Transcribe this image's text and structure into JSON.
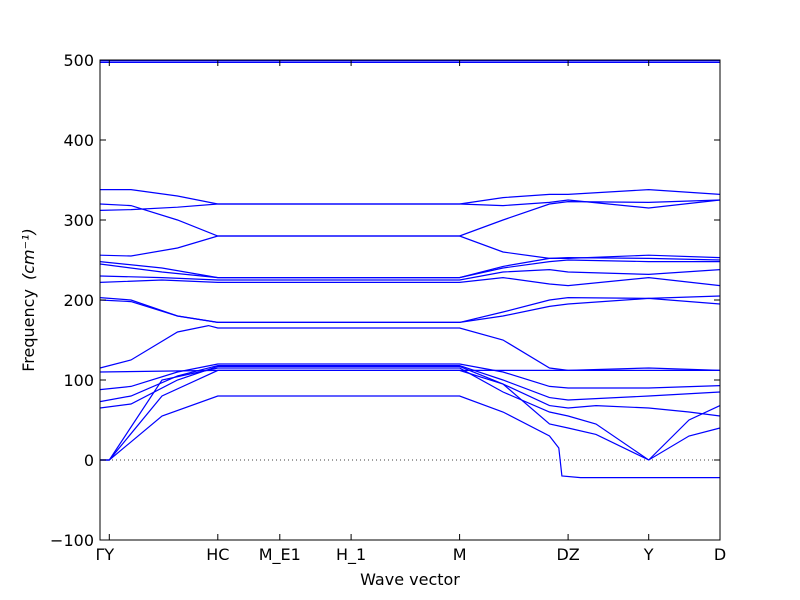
{
  "chart_data": {
    "type": "line",
    "title": "",
    "xlabel": "Wave vector",
    "ylabel": "Frequency",
    "ylabel_unit": "(cm⁻¹)",
    "ylim": [
      -100,
      500
    ],
    "yticks": [
      -100,
      0,
      100,
      200,
      300,
      400,
      500
    ],
    "ytick_labels": [
      "−100",
      "0",
      "100",
      "200",
      "300",
      "400",
      "500"
    ],
    "x_points": [
      {
        "label": "Γ",
        "x": 0.0
      },
      {
        "label": "Y",
        "x": 0.03
      },
      {
        "label": "HC",
        "x": 0.38
      },
      {
        "label": "M_E1",
        "x": 0.58
      },
      {
        "label": "H_1",
        "x": 0.81
      },
      {
        "label": "M",
        "x": 1.16
      },
      {
        "label": "DZ",
        "x": 1.51
      },
      {
        "label": "Y",
        "x": 1.77
      },
      {
        "label": "D",
        "x": 2.0
      }
    ],
    "xlim": [
      0,
      2.0
    ],
    "zero_line": true,
    "series_color": "#0000ff",
    "series": [
      {
        "points": [
          [
            0,
            0
          ],
          [
            0.03,
            0
          ],
          [
            0.2,
            55
          ],
          [
            0.38,
            80
          ],
          [
            1.16,
            80
          ],
          [
            1.3,
            60
          ],
          [
            1.45,
            30
          ],
          [
            1.48,
            15
          ],
          [
            1.49,
            -20
          ],
          [
            1.55,
            -22
          ],
          [
            2.0,
            -22
          ]
        ]
      },
      {
        "points": [
          [
            0,
            0
          ],
          [
            0.03,
            0
          ],
          [
            0.2,
            80
          ],
          [
            0.38,
            112
          ],
          [
            1.16,
            112
          ],
          [
            1.3,
            95
          ],
          [
            1.45,
            45
          ],
          [
            1.51,
            40
          ],
          [
            1.6,
            32
          ],
          [
            1.77,
            0
          ],
          [
            1.9,
            30
          ],
          [
            2.0,
            40
          ]
        ]
      },
      {
        "points": [
          [
            0,
            0
          ],
          [
            0.03,
            0
          ],
          [
            0.2,
            100
          ],
          [
            0.38,
            115
          ],
          [
            1.16,
            115
          ],
          [
            1.3,
            85
          ],
          [
            1.45,
            60
          ],
          [
            1.51,
            55
          ],
          [
            1.6,
            45
          ],
          [
            1.77,
            0
          ],
          [
            1.9,
            50
          ],
          [
            2.0,
            68
          ]
        ]
      },
      {
        "points": [
          [
            0,
            65
          ],
          [
            0.1,
            70
          ],
          [
            0.25,
            100
          ],
          [
            0.38,
            117
          ],
          [
            1.16,
            117
          ],
          [
            1.3,
            95
          ],
          [
            1.45,
            68
          ],
          [
            1.51,
            65
          ],
          [
            1.6,
            68
          ],
          [
            1.77,
            65
          ],
          [
            1.9,
            60
          ],
          [
            2.0,
            55
          ]
        ]
      },
      {
        "points": [
          [
            0,
            73
          ],
          [
            0.1,
            80
          ],
          [
            0.25,
            105
          ],
          [
            0.38,
            118
          ],
          [
            1.16,
            118
          ],
          [
            1.3,
            100
          ],
          [
            1.45,
            78
          ],
          [
            1.51,
            75
          ],
          [
            1.77,
            80
          ],
          [
            2.0,
            85
          ]
        ]
      },
      {
        "points": [
          [
            0,
            88
          ],
          [
            0.1,
            92
          ],
          [
            0.25,
            110
          ],
          [
            0.38,
            120
          ],
          [
            1.16,
            120
          ],
          [
            1.3,
            110
          ],
          [
            1.45,
            92
          ],
          [
            1.51,
            90
          ],
          [
            1.77,
            90
          ],
          [
            2.0,
            93
          ]
        ]
      },
      {
        "points": [
          [
            0,
            110
          ],
          [
            0.38,
            112
          ],
          [
            1.16,
            112
          ],
          [
            1.51,
            112
          ],
          [
            1.77,
            112
          ],
          [
            2.0,
            112
          ]
        ]
      },
      {
        "points": [
          [
            0,
            115
          ],
          [
            0.1,
            125
          ],
          [
            0.25,
            160
          ],
          [
            0.35,
            168
          ],
          [
            0.38,
            165
          ],
          [
            1.16,
            165
          ],
          [
            1.3,
            150
          ],
          [
            1.45,
            115
          ],
          [
            1.51,
            112
          ],
          [
            1.77,
            115
          ],
          [
            2.0,
            112
          ]
        ]
      },
      {
        "points": [
          [
            0,
            200
          ],
          [
            0.1,
            198
          ],
          [
            0.25,
            180
          ],
          [
            0.38,
            172
          ],
          [
            1.16,
            172
          ],
          [
            1.3,
            185
          ],
          [
            1.45,
            200
          ],
          [
            1.51,
            203
          ],
          [
            1.77,
            202
          ],
          [
            2.0,
            205
          ]
        ]
      },
      {
        "points": [
          [
            0,
            203
          ],
          [
            0.1,
            200
          ],
          [
            0.25,
            180
          ],
          [
            0.38,
            172
          ],
          [
            1.16,
            172
          ],
          [
            1.3,
            180
          ],
          [
            1.45,
            192
          ],
          [
            1.51,
            195
          ],
          [
            1.77,
            202
          ],
          [
            2.0,
            195
          ]
        ]
      },
      {
        "points": [
          [
            0,
            222
          ],
          [
            0.2,
            225
          ],
          [
            0.38,
            222
          ],
          [
            1.16,
            222
          ],
          [
            1.3,
            228
          ],
          [
            1.45,
            220
          ],
          [
            1.51,
            218
          ],
          [
            1.77,
            228
          ],
          [
            2.0,
            218
          ]
        ]
      },
      {
        "points": [
          [
            0,
            230
          ],
          [
            0.2,
            228
          ],
          [
            0.38,
            225
          ],
          [
            1.16,
            225
          ],
          [
            1.3,
            235
          ],
          [
            1.45,
            238
          ],
          [
            1.51,
            235
          ],
          [
            1.77,
            232
          ],
          [
            2.0,
            238
          ]
        ]
      },
      {
        "points": [
          [
            0,
            245
          ],
          [
            0.2,
            235
          ],
          [
            0.38,
            228
          ],
          [
            1.16,
            228
          ],
          [
            1.3,
            240
          ],
          [
            1.45,
            248
          ],
          [
            1.51,
            250
          ],
          [
            1.77,
            248
          ],
          [
            2.0,
            248
          ]
        ]
      },
      {
        "points": [
          [
            0,
            248
          ],
          [
            0.2,
            240
          ],
          [
            0.38,
            228
          ],
          [
            1.16,
            228
          ],
          [
            1.3,
            242
          ],
          [
            1.45,
            252
          ],
          [
            1.51,
            253
          ],
          [
            1.77,
            252
          ],
          [
            2.0,
            250
          ]
        ]
      },
      {
        "points": [
          [
            0,
            256
          ],
          [
            0.1,
            255
          ],
          [
            0.25,
            265
          ],
          [
            0.38,
            280
          ],
          [
            1.16,
            280
          ],
          [
            1.3,
            260
          ],
          [
            1.45,
            252
          ],
          [
            1.51,
            252
          ],
          [
            1.77,
            256
          ],
          [
            2.0,
            253
          ]
        ]
      },
      {
        "points": [
          [
            0,
            312
          ],
          [
            0.1,
            313
          ],
          [
            0.25,
            316
          ],
          [
            0.38,
            320
          ],
          [
            1.16,
            320
          ],
          [
            1.3,
            318
          ],
          [
            1.45,
            322
          ],
          [
            1.51,
            325
          ],
          [
            1.77,
            315
          ],
          [
            2.0,
            325
          ]
        ]
      },
      {
        "points": [
          [
            0,
            320
          ],
          [
            0.1,
            318
          ],
          [
            0.25,
            300
          ],
          [
            0.38,
            280
          ],
          [
            1.16,
            280
          ],
          [
            1.3,
            300
          ],
          [
            1.45,
            320
          ],
          [
            1.51,
            323
          ],
          [
            1.77,
            322
          ],
          [
            2.0,
            325
          ]
        ]
      },
      {
        "points": [
          [
            0,
            338
          ],
          [
            0.1,
            338
          ],
          [
            0.25,
            330
          ],
          [
            0.38,
            320
          ],
          [
            1.16,
            320
          ],
          [
            1.3,
            328
          ],
          [
            1.45,
            332
          ],
          [
            1.51,
            332
          ],
          [
            1.77,
            338
          ],
          [
            2.0,
            332
          ]
        ]
      },
      {
        "points": [
          [
            0,
            497
          ],
          [
            2.0,
            497
          ]
        ]
      },
      {
        "points": [
          [
            0,
            499
          ],
          [
            2.0,
            499
          ]
        ]
      }
    ]
  }
}
